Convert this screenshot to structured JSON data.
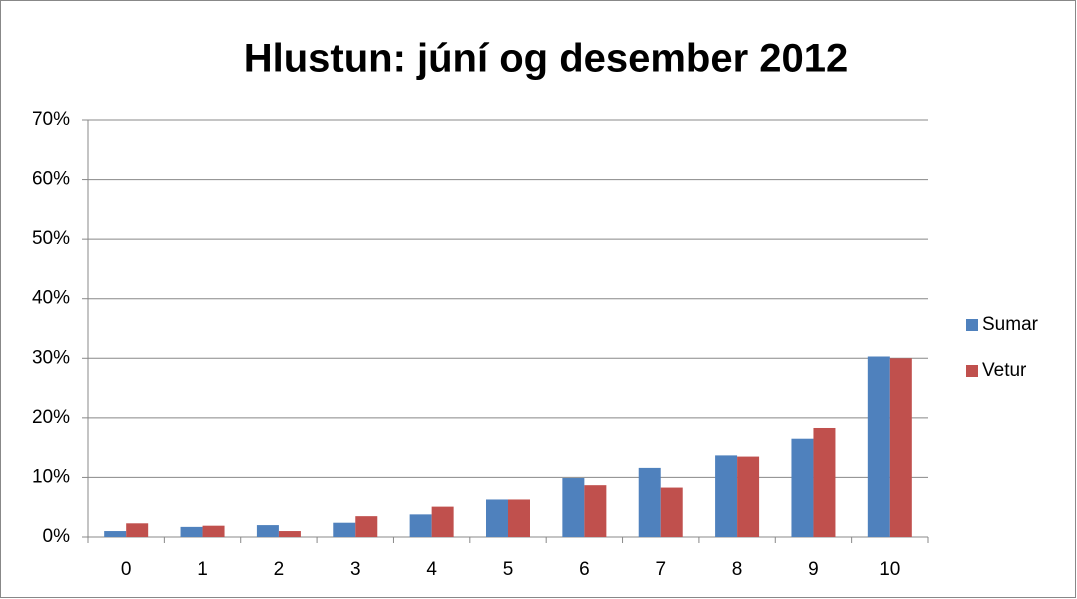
{
  "chart_data": {
    "type": "bar",
    "title": "Hlustun: júní og desember 2012",
    "categories": [
      "0",
      "1",
      "2",
      "3",
      "4",
      "5",
      "6",
      "7",
      "8",
      "9",
      "10"
    ],
    "series": [
      {
        "name": "Sumar",
        "color": "#4f81bd",
        "values": [
          1.0,
          1.7,
          2.0,
          2.4,
          3.8,
          6.3,
          9.9,
          11.6,
          13.7,
          16.5,
          30.3
        ]
      },
      {
        "name": "Vetur",
        "color": "#c0504d",
        "values": [
          2.3,
          1.9,
          1.0,
          3.5,
          5.1,
          6.3,
          8.7,
          8.3,
          13.5,
          18.3,
          30.0
        ]
      }
    ],
    "ylim": [
      0,
      70
    ],
    "yticks": [
      {
        "value": 0,
        "label": "0%"
      },
      {
        "value": 10,
        "label": "10%"
      },
      {
        "value": 20,
        "label": "20%"
      },
      {
        "value": 30,
        "label": "30%"
      },
      {
        "value": 40,
        "label": "40%"
      },
      {
        "value": 50,
        "label": "50%"
      },
      {
        "value": 60,
        "label": "60%"
      },
      {
        "value": 70,
        "label": "70%"
      }
    ],
    "grid": true,
    "legend": "right"
  }
}
